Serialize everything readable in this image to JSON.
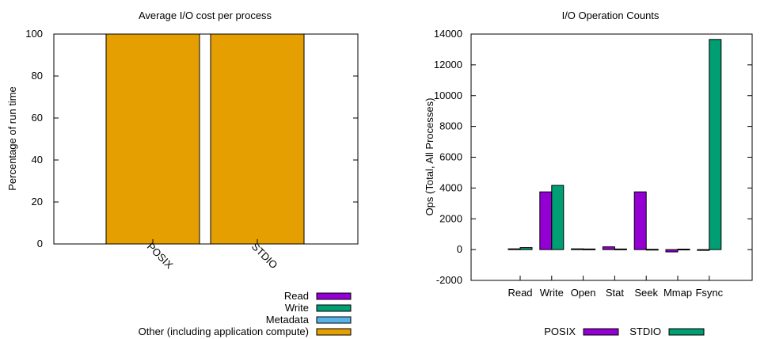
{
  "chart_data": [
    {
      "type": "bar",
      "title": "Average I/O cost per process",
      "xlabel": "",
      "ylabel": "Percentage of run time",
      "ylim": [
        0,
        100
      ],
      "yticks": [
        0,
        20,
        40,
        60,
        80,
        100
      ],
      "categories": [
        "POSIX",
        "STDIO"
      ],
      "stacked": true,
      "series": [
        {
          "name": "Read",
          "color": "#9400d3",
          "values": [
            0,
            0
          ]
        },
        {
          "name": "Write",
          "color": "#009e73",
          "values": [
            0,
            0
          ]
        },
        {
          "name": "Metadata",
          "color": "#56b4e9",
          "values": [
            0,
            0
          ]
        },
        {
          "name": "Other (including application compute)",
          "color": "#e69f00",
          "values": [
            100,
            100
          ]
        }
      ],
      "legend": "bottom-right"
    },
    {
      "type": "bar",
      "title": "I/O Operation Counts",
      "xlabel": "",
      "ylabel": "Ops (Total, All Processes)",
      "ylim": [
        -2000,
        14000
      ],
      "yticks": [
        -2000,
        0,
        2000,
        4000,
        6000,
        8000,
        10000,
        12000,
        14000
      ],
      "categories": [
        "Read",
        "Write",
        "Open",
        "Stat",
        "Seek",
        "Mmap",
        "Fsync"
      ],
      "series": [
        {
          "name": "POSIX",
          "color": "#9400d3",
          "values": [
            50,
            3750,
            50,
            180,
            3750,
            -150,
            0
          ]
        },
        {
          "name": "STDIO",
          "color": "#009e73",
          "values": [
            130,
            4170,
            40,
            40,
            20,
            30,
            13650
          ]
        }
      ],
      "legend": "bottom"
    }
  ]
}
